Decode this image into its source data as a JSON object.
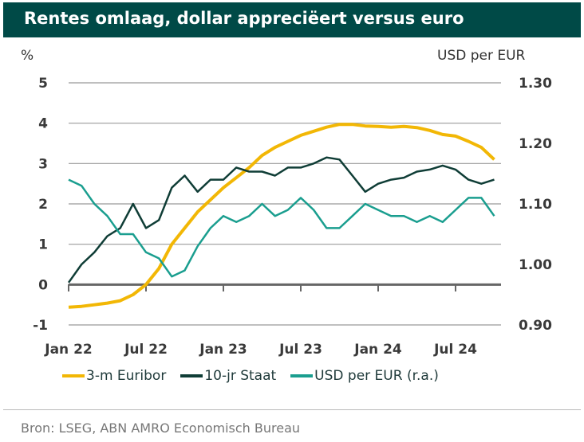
{
  "title": "Rentes omlaag, dollar appreciëert versus euro",
  "source": "Bron: LSEG, ABN AMRO Economisch Bureau",
  "chart_data": {
    "type": "line",
    "title": "Rentes omlaag, dollar appreciëert versus euro",
    "ylabel": "%",
    "y2label": "USD per EUR",
    "ylim": [
      -1,
      5
    ],
    "y2lim": [
      0.9,
      1.3
    ],
    "yticks": [
      "5",
      "4",
      "3",
      "2",
      "1",
      "0",
      "-1"
    ],
    "y2ticks": [
      "1.30",
      "1.20",
      "1.10",
      "1.00",
      "0.90"
    ],
    "xticks": [
      "Jan 22",
      "Jul 22",
      "Jan 23",
      "Jul 23",
      "Jan 24",
      "Jul 24"
    ],
    "x_start": "2022-01",
    "x_frequency": "monthly",
    "legend_position": "bottom",
    "series": [
      {
        "name": "3-m Euribor",
        "axis": "left",
        "color": "#f2b705",
        "values": [
          -0.56,
          -0.54,
          -0.5,
          -0.46,
          -0.4,
          -0.25,
          0.0,
          0.4,
          1.0,
          1.4,
          1.8,
          2.1,
          2.4,
          2.65,
          2.9,
          3.2,
          3.4,
          3.55,
          3.7,
          3.8,
          3.9,
          3.97,
          3.97,
          3.93,
          3.92,
          3.9,
          3.92,
          3.89,
          3.82,
          3.72,
          3.68,
          3.55,
          3.4,
          3.1
        ]
      },
      {
        "name": "10-jr Staat",
        "axis": "left",
        "color": "#0f3d36",
        "values": [
          0.05,
          0.5,
          0.8,
          1.2,
          1.4,
          2.0,
          1.4,
          1.6,
          2.4,
          2.7,
          2.3,
          2.6,
          2.6,
          2.9,
          2.8,
          2.8,
          2.7,
          2.9,
          2.9,
          3.0,
          3.15,
          3.1,
          2.7,
          2.3,
          2.5,
          2.6,
          2.65,
          2.8,
          2.85,
          2.95,
          2.85,
          2.6,
          2.5,
          2.6
        ]
      },
      {
        "name": "USD per EUR (r.a.)",
        "axis": "right",
        "color": "#1a9e8f",
        "values": [
          1.14,
          1.13,
          1.1,
          1.08,
          1.05,
          1.05,
          1.02,
          1.01,
          0.98,
          0.99,
          1.03,
          1.06,
          1.08,
          1.07,
          1.08,
          1.1,
          1.08,
          1.09,
          1.11,
          1.09,
          1.06,
          1.06,
          1.08,
          1.1,
          1.09,
          1.08,
          1.08,
          1.07,
          1.08,
          1.07,
          1.09,
          1.11,
          1.11,
          1.08
        ]
      }
    ]
  }
}
